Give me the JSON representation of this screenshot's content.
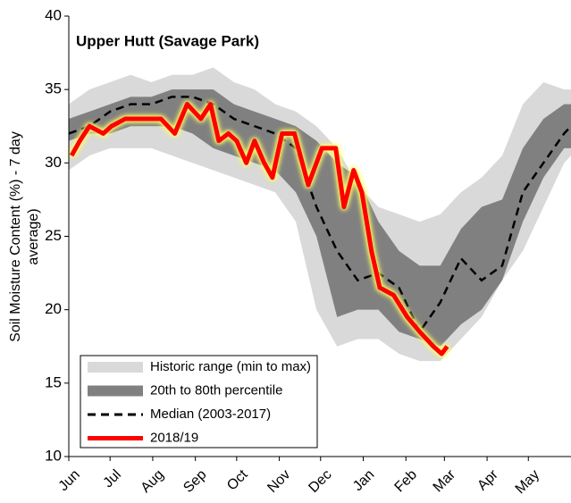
{
  "chart_data": {
    "type": "line",
    "title": "Upper Hutt (Savage Park)",
    "ylabel": [
      "Soil Moisture Content (%) - 7 day",
      "average)"
    ],
    "xlim": [
      0,
      365
    ],
    "xticks": [
      {
        "value": 0,
        "label": "Jun"
      },
      {
        "value": 30,
        "label": "Jul"
      },
      {
        "value": 61,
        "label": "Aug"
      },
      {
        "value": 92,
        "label": "Sep"
      },
      {
        "value": 122,
        "label": "Oct"
      },
      {
        "value": 153,
        "label": "Nov"
      },
      {
        "value": 183,
        "label": "Dec"
      },
      {
        "value": 214,
        "label": "Jan"
      },
      {
        "value": 245,
        "label": "Feb"
      },
      {
        "value": 273,
        "label": "Mar"
      },
      {
        "value": 304,
        "label": "Apr"
      },
      {
        "value": 334,
        "label": "May"
      }
    ],
    "ylim": [
      10,
      40
    ],
    "yticks": [
      10,
      15,
      20,
      25,
      30,
      35,
      40
    ],
    "grid": false,
    "legend": "lower left",
    "series": [
      {
        "name": "Historic range (min to max)",
        "kind": "band",
        "color": "#d9d9d9",
        "x": [
          0,
          15,
          30,
          45,
          60,
          75,
          90,
          105,
          120,
          135,
          150,
          165,
          180,
          195,
          210,
          225,
          240,
          255,
          270,
          285,
          300,
          315,
          330,
          345,
          360,
          365
        ],
        "high": [
          34,
          35,
          35.5,
          36,
          35.5,
          36,
          36,
          36.5,
          35.5,
          35,
          34,
          33.5,
          32.5,
          31,
          28.5,
          27,
          26.5,
          26,
          26.5,
          28,
          29,
          30.5,
          34,
          35.5,
          35,
          35
        ],
        "low": [
          29.5,
          30.5,
          31,
          31,
          31,
          30.5,
          30,
          29.5,
          29,
          28.5,
          28,
          26,
          20,
          17.5,
          18,
          18,
          17,
          16.5,
          16.5,
          18,
          19.5,
          22,
          24,
          27,
          30,
          30.5
        ]
      },
      {
        "name": "20th to 80th percentile",
        "kind": "band",
        "color": "#808080",
        "x": [
          0,
          15,
          30,
          45,
          60,
          75,
          90,
          105,
          120,
          135,
          150,
          165,
          180,
          195,
          210,
          225,
          240,
          255,
          270,
          285,
          300,
          315,
          330,
          345,
          360,
          365
        ],
        "high": [
          33,
          33.5,
          34,
          34.5,
          34.5,
          35,
          35,
          35,
          34,
          33.5,
          33,
          32.5,
          31.5,
          30,
          29,
          26,
          24,
          23,
          23,
          25.5,
          27,
          27.5,
          31,
          33,
          34,
          34
        ],
        "low": [
          31.5,
          32,
          32,
          32.5,
          32.5,
          32.5,
          32,
          31,
          30.5,
          30,
          29.5,
          28,
          25,
          19.5,
          20,
          20,
          18.5,
          18,
          17.5,
          19,
          20,
          22,
          26,
          29,
          31,
          31
        ]
      },
      {
        "name": "Median (2003-2017)",
        "kind": "dashed",
        "color": "#000000",
        "x": [
          0,
          15,
          30,
          45,
          60,
          75,
          90,
          105,
          120,
          135,
          150,
          165,
          180,
          195,
          210,
          225,
          240,
          255,
          270,
          285,
          300,
          315,
          330,
          345,
          360,
          365
        ],
        "values": [
          32,
          32.5,
          33.5,
          34,
          34,
          34.5,
          34.5,
          34,
          33,
          32.5,
          32,
          31,
          27,
          24,
          22,
          22.5,
          21.5,
          18.5,
          20.5,
          23.5,
          22,
          23,
          28,
          30,
          32,
          32.5
        ]
      },
      {
        "name": "2018/19",
        "kind": "solid",
        "color": "#ff0000",
        "x": [
          2,
          8,
          15,
          25,
          31,
          41,
          54,
          67,
          77,
          86,
          96,
          103,
          109,
          116,
          122,
          129,
          135,
          142,
          148,
          155,
          164,
          174,
          184,
          194,
          200,
          207,
          213,
          220,
          226,
          236,
          246,
          255,
          265,
          271,
          275
        ],
        "values": [
          30.5,
          31.5,
          32.5,
          32,
          32.5,
          33,
          33,
          33,
          32,
          34,
          33,
          34,
          31.5,
          32,
          31.5,
          30,
          31.5,
          30,
          29,
          32,
          32,
          28.5,
          31,
          31,
          27,
          29.5,
          28,
          24,
          21.5,
          21,
          19.5,
          18.5,
          17.5,
          17,
          17.5
        ]
      }
    ]
  }
}
